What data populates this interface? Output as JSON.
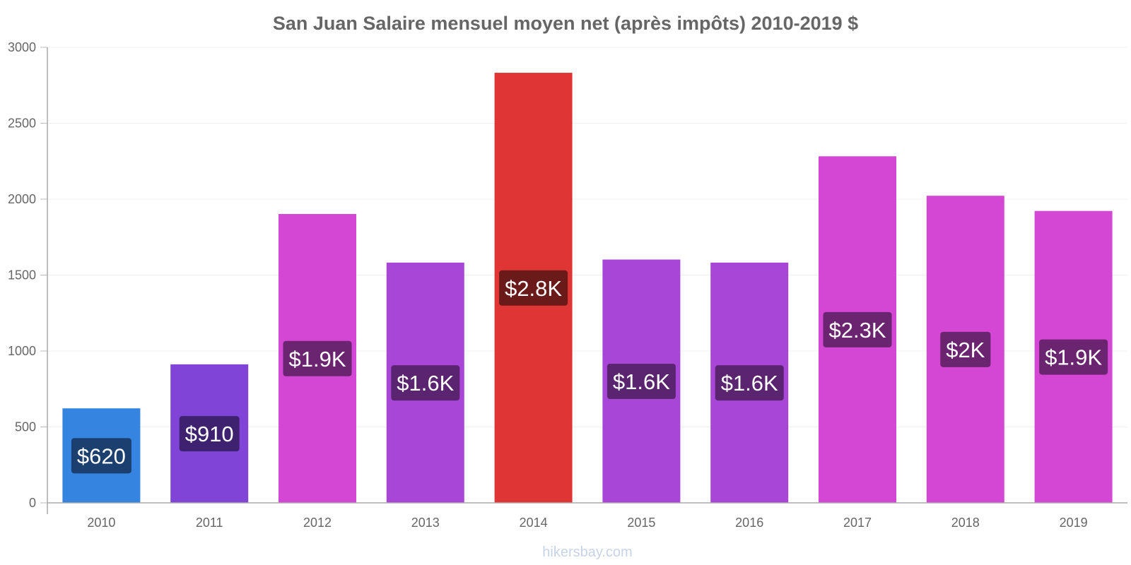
{
  "chart_data": {
    "type": "bar",
    "title": "San Juan Salaire mensuel moyen net (après impôts) 2010-2019 $",
    "xlabel": "",
    "ylabel": "",
    "ylim": [
      0,
      3000
    ],
    "yticks": [
      "0",
      "500",
      "1000",
      "1500",
      "2000",
      "2500",
      "3000"
    ],
    "grid": true,
    "categories": [
      "2010",
      "2011",
      "2012",
      "2013",
      "2014",
      "2015",
      "2016",
      "2017",
      "2018",
      "2019"
    ],
    "values": [
      620,
      910,
      1900,
      1580,
      2830,
      1600,
      1580,
      2280,
      2020,
      1920
    ],
    "data_labels": [
      "$620",
      "$910",
      "$1.9K",
      "$1.6K",
      "$2.8K",
      "$1.6K",
      "$1.6K",
      "$2.3K",
      "$2K",
      "$1.9K"
    ],
    "bar_colors": [
      "#3584e0",
      "#8045d6",
      "#d446d4",
      "#a846d8",
      "#e03535",
      "#a846d8",
      "#a846d8",
      "#d446d4",
      "#d446d4",
      "#d446d4"
    ],
    "label_colors": [
      "#1b3f6e",
      "#3e2270",
      "#6b2570",
      "#5a2470",
      "#6b1a1a",
      "#5a2470",
      "#5a2470",
      "#6b2570",
      "#6b2570",
      "#6b2570"
    ]
  },
  "watermark": "hikersbay.com"
}
